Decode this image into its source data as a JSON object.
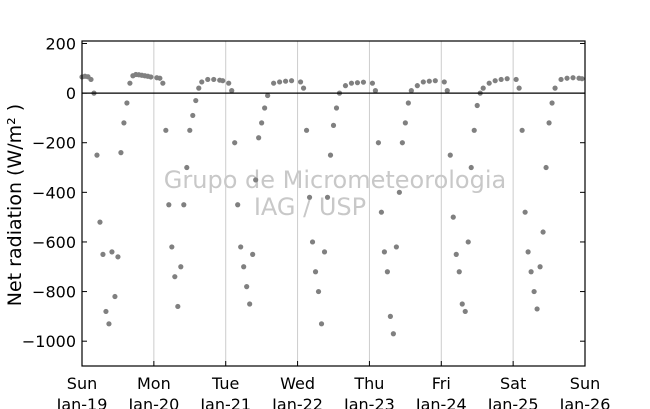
{
  "chart_data": {
    "type": "scatter",
    "ylabel": "Net radiation (W/m² )",
    "ylim": [
      -1100,
      210
    ],
    "xlim": [
      "2014-01-19 00:00",
      "2014-01-26 00:00"
    ],
    "yticks": [
      200,
      0,
      -200,
      -400,
      -600,
      -800,
      -1000
    ],
    "ytick_labels": [
      "200",
      "0",
      "−200",
      "−400",
      "−600",
      "−800",
      "−1000"
    ],
    "xticks": [
      {
        "top": "Sun",
        "bottom": "Jan-19"
      },
      {
        "top": "Mon",
        "bottom": "Jan-20"
      },
      {
        "top": "Tue",
        "bottom": "Jan-21"
      },
      {
        "top": "Wed",
        "bottom": "Jan-22"
      },
      {
        "top": "Thu",
        "bottom": "Jan-23"
      },
      {
        "top": "Fri",
        "bottom": "Jan-24"
      },
      {
        "top": "Sat",
        "bottom": "Jan-25"
      },
      {
        "top": "Sun",
        "bottom": "Jan-26"
      }
    ],
    "grid": "vertical lines at day boundaries",
    "zero_line": true,
    "marker_color": "#808080",
    "watermark": [
      "Grupo de Micrometeorologia",
      "IAG / USP"
    ],
    "series": [
      {
        "points": [
          [
            "2014-01-19 00:00",
            65
          ],
          [
            "2014-01-19 01:00",
            68
          ],
          [
            "2014-01-19 02:00",
            66
          ],
          [
            "2014-01-19 03:00",
            55
          ],
          [
            "2014-01-19 04:00",
            0
          ],
          [
            "2014-01-19 05:00",
            -250
          ],
          [
            "2014-01-19 06:00",
            -520
          ],
          [
            "2014-01-19 07:00",
            -650
          ],
          [
            "2014-01-19 08:00",
            -880
          ],
          [
            "2014-01-19 09:00",
            -930
          ],
          [
            "2014-01-19 10:00",
            -640
          ],
          [
            "2014-01-19 11:00",
            -820
          ],
          [
            "2014-01-19 12:00",
            -660
          ],
          [
            "2014-01-19 13:00",
            -240
          ],
          [
            "2014-01-19 14:00",
            -120
          ],
          [
            "2014-01-19 15:00",
            -40
          ],
          [
            "2014-01-19 16:00",
            40
          ],
          [
            "2014-01-19 17:00",
            70
          ],
          [
            "2014-01-19 18:00",
            75
          ],
          [
            "2014-01-19 19:00",
            74
          ],
          [
            "2014-01-19 20:00",
            72
          ],
          [
            "2014-01-19 21:00",
            70
          ],
          [
            "2014-01-19 22:00",
            68
          ],
          [
            "2014-01-19 23:00",
            65
          ],
          [
            "2014-01-20 01:00",
            62
          ],
          [
            "2014-01-20 02:00",
            60
          ],
          [
            "2014-01-20 03:00",
            40
          ],
          [
            "2014-01-20 04:00",
            -150
          ],
          [
            "2014-01-20 05:00",
            -450
          ],
          [
            "2014-01-20 06:00",
            -620
          ],
          [
            "2014-01-20 07:00",
            -740
          ],
          [
            "2014-01-20 08:00",
            -860
          ],
          [
            "2014-01-20 09:00",
            -700
          ],
          [
            "2014-01-20 10:00",
            -450
          ],
          [
            "2014-01-20 11:00",
            -300
          ],
          [
            "2014-01-20 12:00",
            -150
          ],
          [
            "2014-01-20 13:00",
            -90
          ],
          [
            "2014-01-20 14:00",
            -30
          ],
          [
            "2014-01-20 15:00",
            20
          ],
          [
            "2014-01-20 16:00",
            45
          ],
          [
            "2014-01-20 18:00",
            55
          ],
          [
            "2014-01-20 20:00",
            55
          ],
          [
            "2014-01-20 22:00",
            52
          ],
          [
            "2014-01-20 23:00",
            50
          ],
          [
            "2014-01-21 01:00",
            40
          ],
          [
            "2014-01-21 02:00",
            10
          ],
          [
            "2014-01-21 03:00",
            -200
          ],
          [
            "2014-01-21 04:00",
            -450
          ],
          [
            "2014-01-21 05:00",
            -620
          ],
          [
            "2014-01-21 06:00",
            -700
          ],
          [
            "2014-01-21 07:00",
            -780
          ],
          [
            "2014-01-21 08:00",
            -850
          ],
          [
            "2014-01-21 09:00",
            -650
          ],
          [
            "2014-01-21 10:00",
            -350
          ],
          [
            "2014-01-21 11:00",
            -180
          ],
          [
            "2014-01-21 12:00",
            -120
          ],
          [
            "2014-01-21 13:00",
            -60
          ],
          [
            "2014-01-21 14:00",
            -10
          ],
          [
            "2014-01-21 16:00",
            40
          ],
          [
            "2014-01-21 18:00",
            45
          ],
          [
            "2014-01-21 20:00",
            48
          ],
          [
            "2014-01-21 22:00",
            50
          ],
          [
            "2014-01-22 01:00",
            45
          ],
          [
            "2014-01-22 02:00",
            20
          ],
          [
            "2014-01-22 03:00",
            -150
          ],
          [
            "2014-01-22 04:00",
            -420
          ],
          [
            "2014-01-22 05:00",
            -600
          ],
          [
            "2014-01-22 06:00",
            -720
          ],
          [
            "2014-01-22 07:00",
            -800
          ],
          [
            "2014-01-22 08:00",
            -930
          ],
          [
            "2014-01-22 09:00",
            -640
          ],
          [
            "2014-01-22 10:00",
            -420
          ],
          [
            "2014-01-22 11:00",
            -250
          ],
          [
            "2014-01-22 12:00",
            -130
          ],
          [
            "2014-01-22 13:00",
            -60
          ],
          [
            "2014-01-22 14:00",
            0
          ],
          [
            "2014-01-22 16:00",
            30
          ],
          [
            "2014-01-22 18:00",
            40
          ],
          [
            "2014-01-22 20:00",
            42
          ],
          [
            "2014-01-22 22:00",
            44
          ],
          [
            "2014-01-23 01:00",
            40
          ],
          [
            "2014-01-23 02:00",
            10
          ],
          [
            "2014-01-23 03:00",
            -200
          ],
          [
            "2014-01-23 04:00",
            -480
          ],
          [
            "2014-01-23 05:00",
            -640
          ],
          [
            "2014-01-23 06:00",
            -720
          ],
          [
            "2014-01-23 07:00",
            -900
          ],
          [
            "2014-01-23 08:00",
            -970
          ],
          [
            "2014-01-23 09:00",
            -620
          ],
          [
            "2014-01-23 10:00",
            -400
          ],
          [
            "2014-01-23 11:00",
            -200
          ],
          [
            "2014-01-23 12:00",
            -120
          ],
          [
            "2014-01-23 13:00",
            -40
          ],
          [
            "2014-01-23 14:00",
            10
          ],
          [
            "2014-01-23 16:00",
            30
          ],
          [
            "2014-01-23 18:00",
            45
          ],
          [
            "2014-01-23 20:00",
            48
          ],
          [
            "2014-01-23 22:00",
            50
          ],
          [
            "2014-01-24 01:00",
            45
          ],
          [
            "2014-01-24 02:00",
            10
          ],
          [
            "2014-01-24 03:00",
            -250
          ],
          [
            "2014-01-24 04:00",
            -500
          ],
          [
            "2014-01-24 05:00",
            -650
          ],
          [
            "2014-01-24 06:00",
            -720
          ],
          [
            "2014-01-24 07:00",
            -850
          ],
          [
            "2014-01-24 08:00",
            -880
          ],
          [
            "2014-01-24 09:00",
            -600
          ],
          [
            "2014-01-24 10:00",
            -300
          ],
          [
            "2014-01-24 11:00",
            -150
          ],
          [
            "2014-01-24 12:00",
            -50
          ],
          [
            "2014-01-24 13:00",
            0
          ],
          [
            "2014-01-24 14:00",
            20
          ],
          [
            "2014-01-24 16:00",
            40
          ],
          [
            "2014-01-24 18:00",
            50
          ],
          [
            "2014-01-24 20:00",
            55
          ],
          [
            "2014-01-24 22:00",
            58
          ],
          [
            "2014-01-25 01:00",
            55
          ],
          [
            "2014-01-25 02:00",
            20
          ],
          [
            "2014-01-25 03:00",
            -150
          ],
          [
            "2014-01-25 04:00",
            -480
          ],
          [
            "2014-01-25 05:00",
            -640
          ],
          [
            "2014-01-25 06:00",
            -720
          ],
          [
            "2014-01-25 07:00",
            -800
          ],
          [
            "2014-01-25 08:00",
            -870
          ],
          [
            "2014-01-25 09:00",
            -700
          ],
          [
            "2014-01-25 10:00",
            -560
          ],
          [
            "2014-01-25 11:00",
            -300
          ],
          [
            "2014-01-25 12:00",
            -120
          ],
          [
            "2014-01-25 13:00",
            -40
          ],
          [
            "2014-01-25 14:00",
            20
          ],
          [
            "2014-01-25 16:00",
            55
          ],
          [
            "2014-01-25 18:00",
            60
          ],
          [
            "2014-01-25 20:00",
            62
          ],
          [
            "2014-01-25 22:00",
            60
          ],
          [
            "2014-01-25 23:00",
            58
          ]
        ]
      }
    ]
  }
}
